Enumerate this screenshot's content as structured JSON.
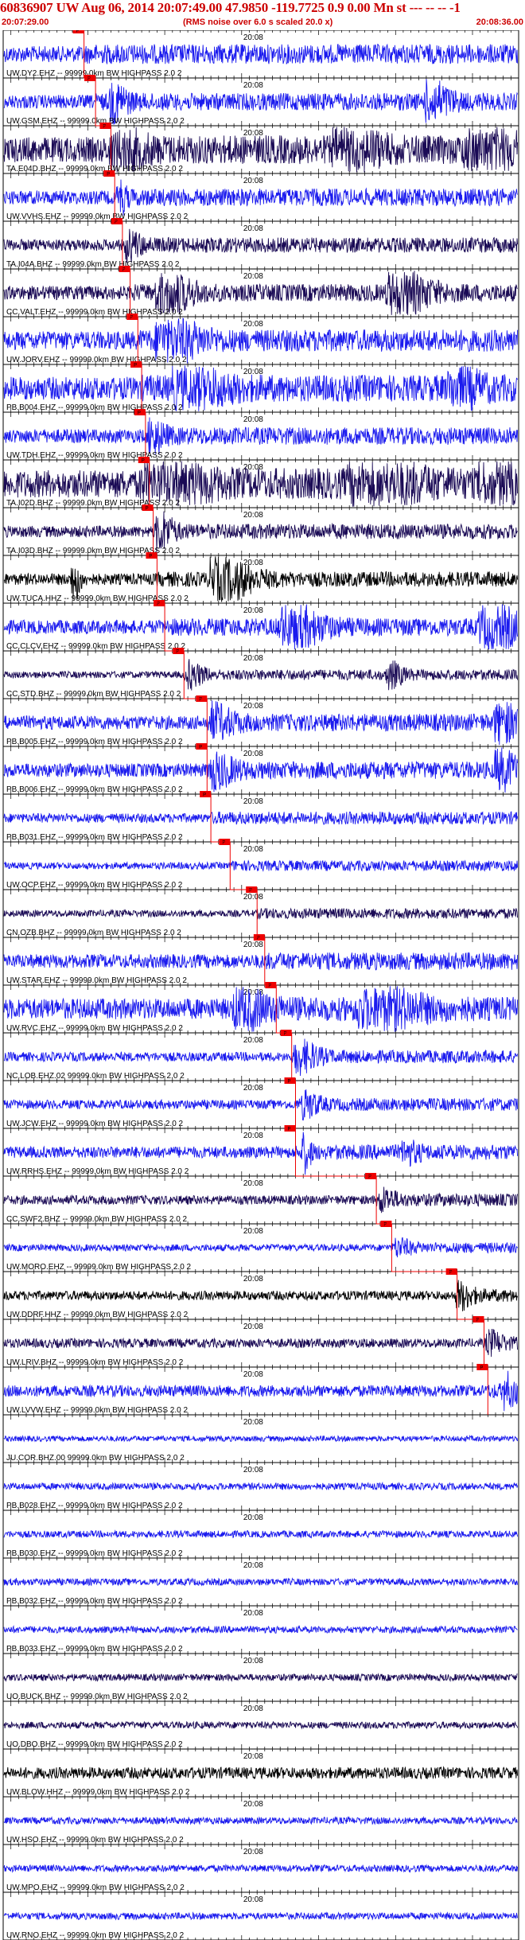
{
  "header": {
    "title": "60836907 UW Aug 06, 2014 20:07:49.00   47.9850 -119.7725  0.9 0.00 Mn st --- -- --  -1",
    "start_time": "20:07:29.00",
    "end_time": "20:08:36.00",
    "note": "(RMS noise over 6.0 s scaled 20.0 x)"
  },
  "chart_data": {
    "type": "line",
    "title": "60836907 UW Aug 06, 2014 20:07:49.00   47.9850 -119.7725  0.9 0.00 Mn st --- -- --  -1",
    "x_range": [
      "20:07:29.00",
      "20:08:36.00"
    ],
    "x_tick_label": "20:08",
    "x_tick_label_time_s": 31,
    "duration_s": 67,
    "event_box_label": "P",
    "colors": {
      "blue": "#1a1aee",
      "navy": "#1a0a55",
      "black": "#000000",
      "pick": "#ee0000"
    },
    "traces": [
      {
        "label": "UW.DY2.EHZ -- 99999.0km BW  HIGHPASS  2.0  2",
        "color": "blue",
        "pick_s": 10.5,
        "amp": 0.35,
        "bursts": []
      },
      {
        "label": "UW.GSM.EHZ -- 99999.0km BW  HIGHPASS  2.0  2",
        "color": "blue",
        "pick_s": 12.0,
        "amp": 0.3,
        "bursts": [
          [
            14,
            0.8,
            2
          ],
          [
            55,
            0.8,
            3
          ]
        ]
      },
      {
        "label": "TA.E04D.BHZ -- 99999.0km BW  HIGHPASS  2.0  2",
        "color": "navy",
        "pick_s": 14.0,
        "amp": 0.55,
        "bursts": [
          [
            14,
            0.7,
            4
          ],
          [
            43,
            1.0,
            5
          ],
          [
            60,
            1.0,
            6
          ]
        ]
      },
      {
        "label": "UW.VVHS.EHZ -- 99999.0km BW  HIGHPASS  2.0  2",
        "color": "blue",
        "pick_s": 14.5,
        "amp": 0.3,
        "bursts": [
          [
            15,
            0.6,
            1
          ]
        ]
      },
      {
        "label": "TA.I04A.BHZ -- 99999.0km BW  HIGHPASS  2.0  2",
        "color": "navy",
        "pick_s": 15.5,
        "amp": 0.25,
        "bursts": [
          [
            16,
            0.5,
            2
          ]
        ]
      },
      {
        "label": "CC.VALT.EHZ -- 99999.0km BW  HIGHPASS  2.0  2",
        "color": "navy",
        "pick_s": 16.5,
        "amp": 0.3,
        "bursts": [
          [
            20,
            1.0,
            4
          ],
          [
            50,
            1.0,
            5
          ]
        ]
      },
      {
        "label": "UW.JORV.EHZ -- 99999.0km BW  HIGHPASS  2.0  2",
        "color": "blue",
        "pick_s": 17.5,
        "amp": 0.4,
        "bursts": [
          [
            20,
            1.0,
            5
          ]
        ]
      },
      {
        "label": "PB.B004.EHZ -- 99999.0km BW  HIGHPASS  2.0  2",
        "color": "blue",
        "pick_s": 18.0,
        "amp": 0.5,
        "bursts": [
          [
            22,
            0.9,
            6
          ],
          [
            58,
            0.7,
            4
          ]
        ]
      },
      {
        "label": "UW.TDH.EHZ -- 99999.0km BW  HIGHPASS  2.0  2",
        "color": "blue",
        "pick_s": 18.5,
        "amp": 0.3,
        "bursts": [
          [
            19,
            0.6,
            2
          ]
        ]
      },
      {
        "label": "TA.I02D.BHZ -- 99999.0km BW  HIGHPASS  2.0  2",
        "color": "navy",
        "pick_s": 19.0,
        "amp": 0.6,
        "bursts": [
          [
            18,
            1.0,
            7
          ],
          [
            45,
            1.0,
            8
          ],
          [
            62,
            1.0,
            4
          ]
        ]
      },
      {
        "label": "TA.I03D.BHZ -- 99999.0km BW  HIGHPASS  2.0  2",
        "color": "navy",
        "pick_s": 19.5,
        "amp": 0.25,
        "bursts": [
          [
            20,
            0.8,
            2
          ]
        ]
      },
      {
        "label": "UW.TUCA.HHZ -- 99999.0km BW  HIGHPASS  2.0  2",
        "color": "black",
        "pick_s": 20.0,
        "amp": 0.25,
        "bursts": [
          [
            9,
            1.0,
            1
          ],
          [
            27,
            1.0,
            5
          ]
        ]
      },
      {
        "label": "CC.CLCV.EHZ -- 99999.0km BW  HIGHPASS  2.0  2",
        "color": "blue",
        "pick_s": 21.0,
        "amp": 0.3,
        "bursts": [
          [
            36,
            1.0,
            5
          ],
          [
            62,
            1.0,
            5
          ]
        ]
      },
      {
        "label": "CC.STD.BHZ -- 99999.0km BW  HIGHPASS  2.0  2",
        "color": "navy",
        "pick_s": 23.5,
        "amp": 0.15,
        "bursts": [
          [
            24,
            0.5,
            2
          ],
          [
            50,
            0.5,
            2
          ]
        ]
      },
      {
        "label": "PB.B005.EHZ -- 99999.0km BW  HIGHPASS  2.0  2",
        "color": "blue",
        "pick_s": 26.5,
        "amp": 0.3,
        "bursts": [
          [
            27,
            0.6,
            3
          ],
          [
            64,
            0.8,
            3
          ]
        ]
      },
      {
        "label": "PB.B006.EHZ -- 99999.0km BW  HIGHPASS  2.0  2",
        "color": "blue",
        "pick_s": 26.5,
        "amp": 0.3,
        "bursts": [
          [
            27,
            0.6,
            3
          ],
          [
            64,
            0.8,
            3
          ]
        ]
      },
      {
        "label": "PB.B031.EHZ -- 99999.0km BW  HIGHPASS  2.0  2",
        "color": "blue",
        "pick_s": 27.0,
        "amp": 0.2,
        "bursts": []
      },
      {
        "label": "UW.OCP.EHZ -- 99999.0km BW  HIGHPASS  2.0  2",
        "color": "blue",
        "pick_s": 29.5,
        "amp": 0.15,
        "bursts": []
      },
      {
        "label": "CN.OZB.BHZ -- 99999.0km BW  HIGHPASS  2.0  2",
        "color": "navy",
        "pick_s": 33.0,
        "amp": 0.15,
        "bursts": []
      },
      {
        "label": "UW.STAR.EHZ -- 99999.0km BW  HIGHPASS  2.0  2",
        "color": "blue",
        "pick_s": 34.0,
        "amp": 0.3,
        "bursts": []
      },
      {
        "label": "UW.RVC.EHZ -- 99999.0km BW  HIGHPASS  2.0  2",
        "color": "blue",
        "pick_s": 35.5,
        "amp": 0.45,
        "bursts": [
          [
            30,
            0.9,
            4
          ],
          [
            46,
            1.0,
            7
          ]
        ]
      },
      {
        "label": "NC.LOB.EHZ.02 99999.0km BW  HIGHPASS  2.0  2",
        "color": "blue",
        "pick_s": 37.5,
        "amp": 0.2,
        "bursts": [
          [
            38,
            0.6,
            3
          ]
        ]
      },
      {
        "label": "UW.JCW.EHZ -- 99999.0km BW  HIGHPASS  2.0  2",
        "color": "blue",
        "pick_s": 38.0,
        "amp": 0.2,
        "bursts": [
          [
            39,
            0.5,
            2
          ]
        ]
      },
      {
        "label": "UW.RRHS.EHZ -- 99999.0km BW  HIGHPASS  2.0  2",
        "color": "blue",
        "pick_s": 38.0,
        "amp": 0.25,
        "bursts": [
          [
            39,
            0.7,
            1
          ],
          [
            52,
            0.4,
            2
          ]
        ]
      },
      {
        "label": "CC.SWF2.BHZ -- 99999.0km BW  HIGHPASS  2.0  2",
        "color": "navy",
        "pick_s": 48.5,
        "amp": 0.2,
        "bursts": [
          [
            49,
            0.4,
            2
          ]
        ]
      },
      {
        "label": "UW.MORO.EHZ -- 99999.0km BW  HIGHPASS  2.0  2",
        "color": "blue",
        "pick_s": 50.5,
        "amp": 0.15,
        "bursts": [
          [
            51,
            0.3,
            2
          ]
        ]
      },
      {
        "label": "UW.DDRF.HHZ -- 99999.0km BW  HIGHPASS  2.0  2",
        "color": "black",
        "pick_s": 59.0,
        "amp": 0.2,
        "bursts": [
          [
            59,
            0.5,
            2
          ]
        ]
      },
      {
        "label": "UW.LRIV.BHZ -- 99999.0km BW  HIGHPASS  2.0  2",
        "color": "navy",
        "pick_s": 62.5,
        "amp": 0.2,
        "bursts": [
          [
            63,
            0.4,
            2
          ]
        ]
      },
      {
        "label": "UW.LVVW.EHZ -- 99999.0km BW  HIGHPASS  2.0  2",
        "color": "blue",
        "pick_s": 63.0,
        "amp": 0.25,
        "bursts": [
          [
            65,
            0.6,
            2
          ]
        ]
      },
      {
        "label": "JU.COR.BHZ.00 99999.0km BW  HIGHPASS  2.0  2",
        "color": "blue",
        "pick_s": null,
        "amp": 0.12,
        "bursts": []
      },
      {
        "label": "PB.B028.EHZ -- 99999.0km BW  HIGHPASS  2.0  2",
        "color": "blue",
        "pick_s": null,
        "amp": 0.15,
        "bursts": []
      },
      {
        "label": "PB.B030.EHZ -- 99999.0km BW  HIGHPASS  2.0  2",
        "color": "blue",
        "pick_s": null,
        "amp": 0.15,
        "bursts": []
      },
      {
        "label": "PB.B032.EHZ -- 99999.0km BW  HIGHPASS  2.0  2",
        "color": "blue",
        "pick_s": null,
        "amp": 0.15,
        "bursts": []
      },
      {
        "label": "PB.B033.EHZ -- 99999.0km BW  HIGHPASS  2.0  2",
        "color": "blue",
        "pick_s": null,
        "amp": 0.15,
        "bursts": []
      },
      {
        "label": "UO.BUCK.BHZ -- 99999.0km BW  HIGHPASS  2.0  2",
        "color": "navy",
        "pick_s": null,
        "amp": 0.15,
        "bursts": []
      },
      {
        "label": "UO.DBO.BHZ -- 99999.0km BW  HIGHPASS  2.0  2",
        "color": "navy",
        "pick_s": null,
        "amp": 0.15,
        "bursts": []
      },
      {
        "label": "UW.BLOW.HHZ -- 99999.0km BW  HIGHPASS  2.0  2",
        "color": "black",
        "pick_s": null,
        "amp": 0.25,
        "bursts": []
      },
      {
        "label": "UW.HSO.EHZ -- 99999.0km BW  HIGHPASS  2.0  2",
        "color": "blue",
        "pick_s": null,
        "amp": 0.15,
        "bursts": []
      },
      {
        "label": "UW.MPO.EHZ -- 99999.0km BW  HIGHPASS  2.0  2",
        "color": "blue",
        "pick_s": null,
        "amp": 0.15,
        "bursts": []
      },
      {
        "label": "UW.RNO.EHZ -- 99999.0km BW  HIGHPASS  2.0  2",
        "color": "blue",
        "pick_s": null,
        "amp": 0.15,
        "bursts": []
      }
    ]
  }
}
